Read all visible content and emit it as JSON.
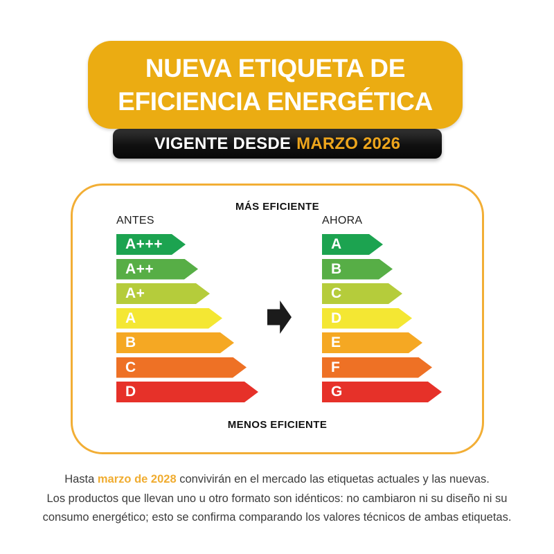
{
  "header": {
    "title_line1": "NUEVA ETIQUETA DE",
    "title_line2": "EFICIENCIA ENERGÉTICA",
    "subtitle_prefix": "VIGENTE DESDE",
    "subtitle_highlight": "MARZO 2026"
  },
  "card": {
    "top_label": "MÁS EFICIENTE",
    "bottom_label": "MENOS EFICIENTE",
    "before": {
      "title": "ANTES",
      "grades": [
        "A+++",
        "A++",
        "A+",
        "A",
        "B",
        "C",
        "D"
      ],
      "widths": [
        100,
        118,
        135,
        153,
        170,
        188,
        205
      ]
    },
    "after": {
      "title": "AHORA",
      "grades": [
        "A",
        "B",
        "C",
        "D",
        "E",
        "F",
        "G"
      ],
      "widths": [
        88,
        102,
        116,
        130,
        145,
        159,
        173
      ]
    }
  },
  "footer": {
    "line1_prefix": "Hasta ",
    "line1_highlight": "marzo de 2028",
    "line1_suffix": " convivirán en el mercado las etiquetas actuales y las nuevas.",
    "line2": "Los productos que llevan uno u otro formato son idénticos: no cambiaron ni su diseño ni su",
    "line3": "consumo energético; esto se confirma comparando los valores técnicos de ambas etiquetas."
  },
  "colors": {
    "banner_bg": "#EBAC12",
    "subtitle_bg": "#151515",
    "subtitle_accent": "#EDA51C",
    "card_border": "#F2AE35",
    "arrow_black": "#1B1B1B",
    "footer_accent": "#F0AC30",
    "grade_rows": [
      "#1CA350",
      "#57AE46",
      "#B5CC3B",
      "#F4E733",
      "#F5A823",
      "#EE7125",
      "#E63129"
    ]
  }
}
